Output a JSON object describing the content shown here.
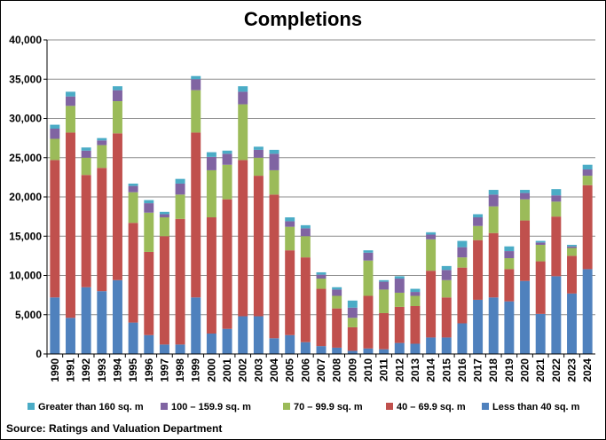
{
  "chart_data": {
    "type": "bar",
    "stacked": true,
    "title": "Completions",
    "source": "Source: Ratings and Valuation Department",
    "xlabel": "",
    "ylabel": "",
    "ylim": [
      0,
      40000
    ],
    "y_ticks": [
      "0",
      "5,000",
      "10,000",
      "15,000",
      "20,000",
      "25,000",
      "30,000",
      "35,000",
      "40,000"
    ],
    "grid": true,
    "legend_position": "bottom",
    "categories": [
      "1990",
      "1991",
      "1992",
      "1993",
      "1994",
      "1995",
      "1996",
      "1997",
      "1998",
      "1999",
      "2000",
      "2001",
      "2002",
      "2003",
      "2004",
      "2005",
      "2006",
      "2007",
      "2008",
      "2009",
      "2010",
      "2011",
      "2012",
      "2013",
      "2014",
      "2015",
      "2016",
      "2017",
      "2018",
      "2019",
      "2020",
      "2021",
      "2022",
      "2023",
      "2024"
    ],
    "series": [
      {
        "name": "Less than 40 sq. m",
        "color": "#4f81bd",
        "values": [
          7200,
          4600,
          8500,
          8000,
          9400,
          4000,
          2400,
          1200,
          1200,
          7200,
          2600,
          3200,
          4800,
          4800,
          2000,
          2400,
          1500,
          1000,
          800,
          400,
          700,
          600,
          1400,
          1300,
          2100,
          2100,
          3900,
          6900,
          7200,
          6700,
          9300,
          5100,
          9900,
          7700,
          10800
        ]
      },
      {
        "name": "40 – 69.9 sq. m",
        "color": "#c0504d",
        "values": [
          17500,
          23600,
          14300,
          15700,
          18700,
          12700,
          10600,
          13800,
          16000,
          21000,
          14800,
          16500,
          19900,
          17900,
          18300,
          10800,
          10800,
          7300,
          5000,
          3000,
          6700,
          4600,
          4600,
          4800,
          8500,
          5100,
          7100,
          7600,
          8200,
          4100,
          7700,
          6700,
          7600,
          4800,
          10700
        ]
      },
      {
        "name": "70 – 99.9 sq. m",
        "color": "#9bbb59",
        "values": [
          2700,
          3400,
          2200,
          2900,
          4100,
          3900,
          5000,
          2400,
          3100,
          5400,
          6000,
          4400,
          7100,
          2300,
          3100,
          3000,
          2700,
          1300,
          1600,
          1200,
          4500,
          3000,
          1800,
          1300,
          4000,
          2200,
          1300,
          1800,
          3400,
          1400,
          2700,
          2100,
          1900,
          1000,
          1200
        ]
      },
      {
        "name": "100 – 159.9 sq. m",
        "color": "#8064a2",
        "values": [
          1300,
          1200,
          900,
          600,
          1400,
          800,
          1200,
          400,
          1400,
          1400,
          1700,
          1400,
          1600,
          1000,
          2100,
          700,
          1000,
          500,
          800,
          1300,
          1000,
          1000,
          1800,
          500,
          600,
          1300,
          1300,
          1100,
          1500,
          900,
          800,
          300,
          800,
          200,
          800
        ]
      },
      {
        "name": "Greater than 160 sq. m",
        "color": "#4bacc6",
        "values": [
          500,
          600,
          400,
          300,
          500,
          300,
          400,
          300,
          600,
          400,
          600,
          400,
          700,
          400,
          500,
          500,
          400,
          300,
          300,
          900,
          300,
          200,
          300,
          400,
          300,
          500,
          800,
          400,
          600,
          600,
          400,
          200,
          800,
          200,
          600
        ]
      }
    ]
  }
}
